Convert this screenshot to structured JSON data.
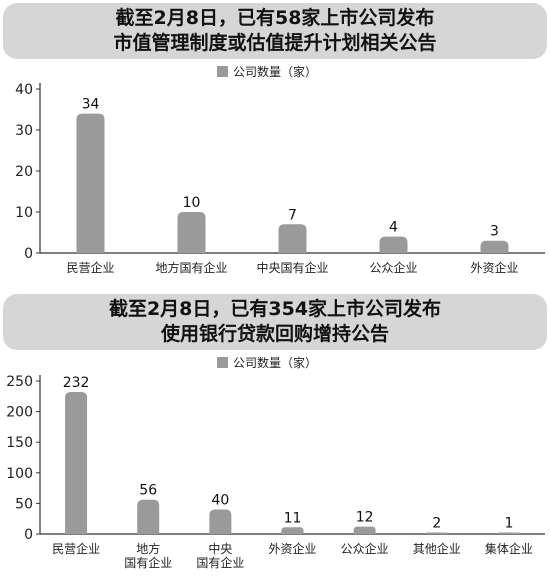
{
  "chart_data": [
    {
      "type": "bar",
      "title": "截至2月8日，已有58家上市公司发布",
      "subtitle": "市值管理制度或估值提升计划相关公告",
      "legend": "公司数量（家）",
      "legend_position": "top-center",
      "categories": [
        "民营企业",
        "地方国有企业",
        "中央国有企业",
        "公众企业",
        "外资企业"
      ],
      "values": [
        34,
        10,
        7,
        4,
        3
      ],
      "yticks": [
        0,
        10,
        20,
        30,
        40
      ],
      "ylim": [
        0,
        40
      ],
      "bar_color": "#9a9a9a",
      "grid": false
    },
    {
      "type": "bar",
      "title": "截至2月8日，已有354家上市公司发布",
      "subtitle": "使用银行贷款回购增持公告",
      "legend": "公司数量（家）",
      "legend_position": "top-center",
      "categories": [
        "民营企业",
        "地方\n国有企业",
        "中央\n国有企业",
        "外资企业",
        "公众企业",
        "其他企业",
        "集体企业"
      ],
      "values": [
        232,
        56,
        40,
        11,
        12,
        2,
        1
      ],
      "yticks": [
        0,
        50,
        100,
        150,
        200,
        250
      ],
      "ylim": [
        0,
        250
      ],
      "bar_color": "#9a9a9a",
      "grid": false
    }
  ]
}
